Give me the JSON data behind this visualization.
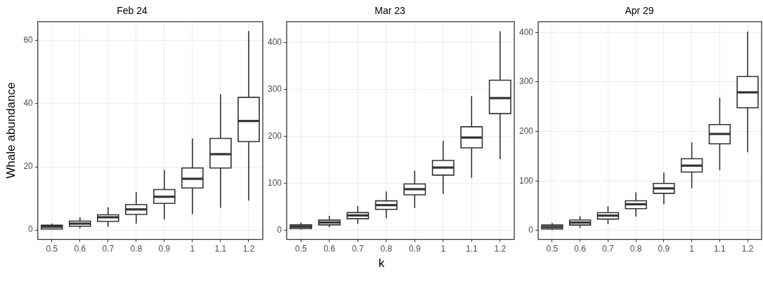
{
  "chart_data": [
    {
      "type": "box",
      "title": "Feb 24",
      "ylabel": "Whale abundance",
      "categories": [
        "0.5",
        "0.6",
        "0.7",
        "0.8",
        "0.9",
        "1",
        "1.1",
        "1.2"
      ],
      "ylim": [
        -3,
        66
      ],
      "yticks": [
        0,
        20,
        40,
        60
      ],
      "grid": true,
      "color": "#333333",
      "boxes": [
        {
          "low": 0.3,
          "q1": 0.3,
          "median": 1,
          "q3": 1.5,
          "high": 2
        },
        {
          "low": 0.5,
          "q1": 1.2,
          "median": 2,
          "q3": 2.8,
          "high": 4
        },
        {
          "low": 1,
          "q1": 2.7,
          "median": 4,
          "q3": 4.8,
          "high": 7.2
        },
        {
          "low": 2,
          "q1": 4.9,
          "median": 6.5,
          "q3": 8,
          "high": 12
        },
        {
          "low": 3.3,
          "q1": 8.4,
          "median": 10.5,
          "q3": 12.8,
          "high": 19
        },
        {
          "low": 5,
          "q1": 13.3,
          "median": 16.2,
          "q3": 19.6,
          "high": 29
        },
        {
          "low": 7,
          "q1": 19.6,
          "median": 24,
          "q3": 29,
          "high": 43
        },
        {
          "low": 9.3,
          "q1": 28,
          "median": 34.5,
          "q3": 42,
          "high": 63
        }
      ]
    },
    {
      "type": "box",
      "title": "Mar 23",
      "xlabel": "k",
      "categories": [
        "0.5",
        "0.6",
        "0.7",
        "0.8",
        "0.9",
        "1",
        "1.1",
        "1.2"
      ],
      "ylim": [
        -20,
        444
      ],
      "yticks": [
        0,
        100,
        200,
        300,
        400
      ],
      "grid": true,
      "color": "#333333",
      "boxes": [
        {
          "low": 1,
          "q1": 3,
          "median": 7,
          "q3": 11,
          "high": 16
        },
        {
          "low": 6,
          "q1": 11,
          "median": 16,
          "q3": 21,
          "high": 30
        },
        {
          "low": 13,
          "q1": 24,
          "median": 31,
          "q3": 37,
          "high": 51
        },
        {
          "low": 25,
          "q1": 44,
          "median": 53,
          "q3": 62,
          "high": 82
        },
        {
          "low": 47,
          "q1": 75,
          "median": 87,
          "q3": 98,
          "high": 126
        },
        {
          "low": 77,
          "q1": 117,
          "median": 133,
          "q3": 148,
          "high": 190
        },
        {
          "low": 111,
          "q1": 175,
          "median": 197,
          "q3": 220,
          "high": 285
        },
        {
          "low": 151,
          "q1": 248,
          "median": 281,
          "q3": 319,
          "high": 423
        }
      ]
    },
    {
      "type": "box",
      "title": "Apr 29",
      "categories": [
        "0.5",
        "0.6",
        "0.7",
        "0.8",
        "0.9",
        "1",
        "1.1",
        "1.2"
      ],
      "ylim": [
        -18,
        422
      ],
      "yticks": [
        0,
        100,
        200,
        300,
        400
      ],
      "grid": true,
      "color": "#333333",
      "boxes": [
        {
          "low": 1,
          "q1": 3,
          "median": 7,
          "q3": 11,
          "high": 15
        },
        {
          "low": 5,
          "q1": 11,
          "median": 16,
          "q3": 21,
          "high": 29
        },
        {
          "low": 13,
          "q1": 23,
          "median": 30,
          "q3": 36,
          "high": 49
        },
        {
          "low": 28,
          "q1": 44,
          "median": 53,
          "q3": 60,
          "high": 77
        },
        {
          "low": 53,
          "q1": 75,
          "median": 85,
          "q3": 95,
          "high": 117
        },
        {
          "low": 85,
          "q1": 118,
          "median": 131,
          "q3": 145,
          "high": 178
        },
        {
          "low": 122,
          "q1": 175,
          "median": 195,
          "q3": 214,
          "high": 268
        },
        {
          "low": 158,
          "q1": 248,
          "median": 279,
          "q3": 311,
          "high": 402
        }
      ]
    }
  ]
}
